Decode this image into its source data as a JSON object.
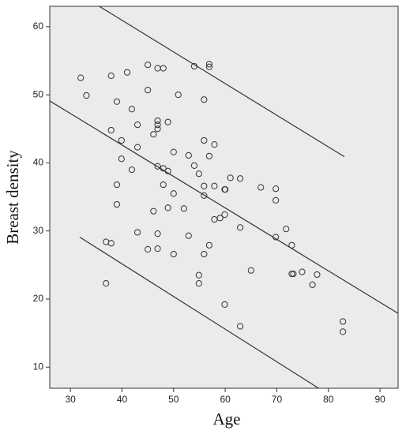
{
  "chart_data": {
    "type": "scatter",
    "x_label": "Age",
    "y_label": "Breast density",
    "xlim": [
      26,
      93.5
    ],
    "ylim": [
      6.9,
      63
    ],
    "xticks": [
      30,
      40,
      50,
      60,
      70,
      80,
      90
    ],
    "yticks": [
      10,
      20,
      30,
      40,
      50,
      60
    ],
    "background": "#ebebeb",
    "marker_color": "#333333",
    "line_color": "#333333",
    "points": {
      "x": [
        32.0,
        33.1,
        37.9,
        41.0,
        45.0,
        46.9,
        48.0,
        54.0,
        56.9,
        56.9,
        45.0,
        50.9,
        55.9,
        39.0,
        41.9,
        43.0,
        46.9,
        46.9,
        46.9,
        48.9,
        37.9,
        39.9,
        46.1,
        43.0,
        55.9,
        57.9,
        50.0,
        39.9,
        52.9,
        56.9,
        46.9,
        48.0,
        54.0,
        41.9,
        48.9,
        54.9,
        61.0,
        62.9,
        39.0,
        48.0,
        55.9,
        57.9,
        59.9,
        60.0,
        66.9,
        69.8,
        50.0,
        55.9,
        69.8,
        39.0,
        48.9,
        52.0,
        46.1,
        59.9,
        57.9,
        59.0,
        62.9,
        71.8,
        43.0,
        46.9,
        52.9,
        69.8,
        36.9,
        37.9,
        56.9,
        72.9,
        45.0,
        46.9,
        50.0,
        55.9,
        65.0,
        72.9,
        73.2,
        74.9,
        77.8,
        54.9,
        54.9,
        36.9,
        76.9,
        59.9,
        82.8,
        82.8,
        62.9
      ],
      "y": [
        52.5,
        49.9,
        52.8,
        53.3,
        54.4,
        53.9,
        53.9,
        54.2,
        54.5,
        54.1,
        50.7,
        50.0,
        49.3,
        49.0,
        47.9,
        45.6,
        46.2,
        45.6,
        45.0,
        46.0,
        44.8,
        43.3,
        44.2,
        42.3,
        43.3,
        42.7,
        41.6,
        40.6,
        41.1,
        41.0,
        39.5,
        39.2,
        39.6,
        39.0,
        38.8,
        38.4,
        37.8,
        37.7,
        36.8,
        36.8,
        36.6,
        36.6,
        36.1,
        36.1,
        36.4,
        36.2,
        35.5,
        35.2,
        34.5,
        33.9,
        33.4,
        33.3,
        32.9,
        32.4,
        31.7,
        31.9,
        30.5,
        30.3,
        29.8,
        29.6,
        29.3,
        29.1,
        28.4,
        28.2,
        27.9,
        27.9,
        27.3,
        27.4,
        26.6,
        26.6,
        24.2,
        23.7,
        23.7,
        24.0,
        23.6,
        23.5,
        22.3,
        22.3,
        22.1,
        19.2,
        16.7,
        15.2,
        16.0
      ]
    },
    "lines": [
      {
        "x": [
          35.6,
          83.1
        ],
        "y": [
          63,
          40.9
        ]
      },
      {
        "x": [
          26,
          93.5
        ],
        "y": [
          49.1,
          17.9
        ]
      },
      {
        "x": [
          31.8,
          78.1
        ],
        "y": [
          29.1,
          6.9
        ]
      }
    ]
  }
}
